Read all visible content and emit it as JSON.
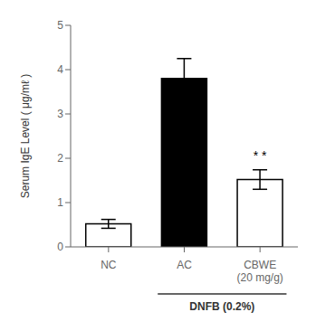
{
  "chart_data": {
    "type": "bar",
    "categories": [
      "NC",
      "AC",
      "CBWE\n(20 mg/g)"
    ],
    "values": [
      0.52,
      3.8,
      1.52
    ],
    "errors": [
      0.1,
      0.45,
      0.22
    ],
    "colors": [
      "white",
      "black",
      "white"
    ],
    "ylabel": "Serum IgE Level ( μg/mℓ )",
    "ylim": [
      0,
      5
    ],
    "yticks": [
      0,
      1,
      2,
      3,
      4,
      5
    ],
    "grid": false,
    "annotations": [
      {
        "text": "* *",
        "x": "CBWE\n(20 mg/g)",
        "y": 1.85
      },
      {
        "text": "DNFB (0.2%)",
        "x": [
          "AC",
          "CBWE\n(20 mg/g)"
        ]
      }
    ]
  }
}
